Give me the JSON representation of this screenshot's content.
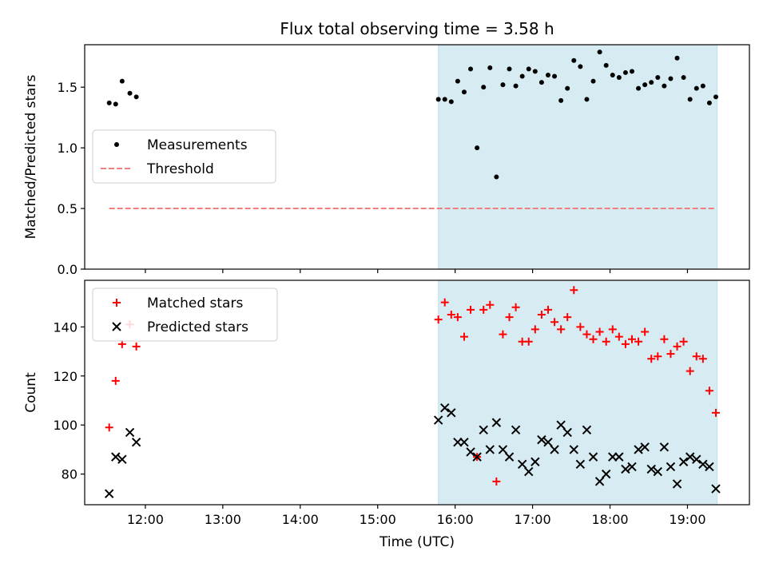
{
  "title": "Flux total observing time = 3.58 h",
  "chart_data": [
    {
      "type": "scatter",
      "ylabel": "Matched/Predicted stars",
      "xlim": [
        "11:13",
        "19:48"
      ],
      "ylim": [
        0,
        1.85
      ],
      "yticks": [
        0.0,
        0.5,
        1.0,
        1.5
      ],
      "ytick_labels": [
        "0.0",
        "0.5",
        "1.0",
        "1.5"
      ],
      "grid": false,
      "legend": "center-left",
      "shaded_span": {
        "x": [
          "15:47",
          "19:23"
        ],
        "color": "#add8e6"
      },
      "series": [
        {
          "name": "Measurements",
          "marker": "dot",
          "color": "#000000",
          "points": [
            [
              "11:32",
              1.37
            ],
            [
              "11:37",
              1.36
            ],
            [
              "11:42",
              1.55
            ],
            [
              "11:48",
              1.45
            ],
            [
              "11:53",
              1.42
            ],
            [
              "15:47",
              1.4
            ],
            [
              "15:52",
              1.4
            ],
            [
              "15:57",
              1.38
            ],
            [
              "16:02",
              1.55
            ],
            [
              "16:07",
              1.46
            ],
            [
              "16:12",
              1.65
            ],
            [
              "16:17",
              1.0
            ],
            [
              "16:22",
              1.5
            ],
            [
              "16:27",
              1.66
            ],
            [
              "16:32",
              0.76
            ],
            [
              "16:37",
              1.52
            ],
            [
              "16:42",
              1.65
            ],
            [
              "16:47",
              1.51
            ],
            [
              "16:52",
              1.59
            ],
            [
              "16:57",
              1.65
            ],
            [
              "17:02",
              1.63
            ],
            [
              "17:07",
              1.54
            ],
            [
              "17:12",
              1.6
            ],
            [
              "17:17",
              1.59
            ],
            [
              "17:22",
              1.39
            ],
            [
              "17:27",
              1.49
            ],
            [
              "17:32",
              1.72
            ],
            [
              "17:37",
              1.67
            ],
            [
              "17:42",
              1.4
            ],
            [
              "17:47",
              1.55
            ],
            [
              "17:52",
              1.79
            ],
            [
              "17:57",
              1.68
            ],
            [
              "18:02",
              1.6
            ],
            [
              "18:07",
              1.58
            ],
            [
              "18:12",
              1.62
            ],
            [
              "18:17",
              1.63
            ],
            [
              "18:22",
              1.49
            ],
            [
              "18:27",
              1.52
            ],
            [
              "18:32",
              1.54
            ],
            [
              "18:37",
              1.58
            ],
            [
              "18:42",
              1.51
            ],
            [
              "18:47",
              1.57
            ],
            [
              "18:52",
              1.74
            ],
            [
              "18:57",
              1.58
            ],
            [
              "19:02",
              1.4
            ],
            [
              "19:07",
              1.49
            ],
            [
              "19:12",
              1.51
            ],
            [
              "19:17",
              1.37
            ],
            [
              "19:22",
              1.42
            ]
          ]
        },
        {
          "name": "Threshold",
          "type": "line",
          "style": "dashed",
          "color": "#f08080",
          "x": [
            "11:32",
            "19:22"
          ],
          "y": [
            0.5,
            0.5
          ]
        }
      ]
    },
    {
      "type": "scatter",
      "xlabel": "Time (UTC)",
      "ylabel": "Count",
      "xlim": [
        "11:13",
        "19:48"
      ],
      "ylim": [
        67.5,
        159
      ],
      "xticks": [
        "12:00",
        "13:00",
        "14:00",
        "15:00",
        "16:00",
        "17:00",
        "18:00",
        "19:00"
      ],
      "yticks": [
        80,
        100,
        120,
        140
      ],
      "grid": false,
      "legend": "top-left",
      "shaded_span": {
        "x": [
          "15:47",
          "19:23"
        ],
        "color": "#add8e6"
      },
      "series": [
        {
          "name": "Matched stars",
          "marker": "plus",
          "color": "#ff0000",
          "points": [
            [
              "11:32",
              99
            ],
            [
              "11:37",
              118
            ],
            [
              "11:42",
              133
            ],
            [
              "11:48",
              141
            ],
            [
              "11:53",
              132
            ],
            [
              "15:47",
              143
            ],
            [
              "15:52",
              150
            ],
            [
              "15:57",
              145
            ],
            [
              "16:02",
              144
            ],
            [
              "16:07",
              136
            ],
            [
              "16:12",
              147
            ],
            [
              "16:17",
              87
            ],
            [
              "16:22",
              147
            ],
            [
              "16:27",
              149
            ],
            [
              "16:32",
              77
            ],
            [
              "16:37",
              137
            ],
            [
              "16:42",
              144
            ],
            [
              "16:47",
              148
            ],
            [
              "16:52",
              134
            ],
            [
              "16:57",
              134
            ],
            [
              "17:02",
              139
            ],
            [
              "17:07",
              145
            ],
            [
              "17:12",
              147
            ],
            [
              "17:17",
              142
            ],
            [
              "17:22",
              139
            ],
            [
              "17:27",
              144
            ],
            [
              "17:32",
              155
            ],
            [
              "17:37",
              140
            ],
            [
              "17:42",
              137
            ],
            [
              "17:47",
              135
            ],
            [
              "17:52",
              138
            ],
            [
              "17:57",
              134
            ],
            [
              "18:02",
              139
            ],
            [
              "18:07",
              136
            ],
            [
              "18:12",
              133
            ],
            [
              "18:17",
              135
            ],
            [
              "18:22",
              134
            ],
            [
              "18:27",
              138
            ],
            [
              "18:32",
              127
            ],
            [
              "18:37",
              128
            ],
            [
              "18:42",
              135
            ],
            [
              "18:47",
              129
            ],
            [
              "18:52",
              132
            ],
            [
              "18:57",
              134
            ],
            [
              "19:02",
              122
            ],
            [
              "19:07",
              128
            ],
            [
              "19:12",
              127
            ],
            [
              "19:17",
              114
            ],
            [
              "19:22",
              105
            ]
          ]
        },
        {
          "name": "Predicted stars",
          "marker": "x",
          "color": "#000000",
          "points": [
            [
              "11:32",
              72
            ],
            [
              "11:37",
              87
            ],
            [
              "11:42",
              86
            ],
            [
              "11:48",
              97
            ],
            [
              "11:53",
              93
            ],
            [
              "15:47",
              102
            ],
            [
              "15:52",
              107
            ],
            [
              "15:57",
              105
            ],
            [
              "16:02",
              93
            ],
            [
              "16:07",
              93
            ],
            [
              "16:12",
              89
            ],
            [
              "16:17",
              87
            ],
            [
              "16:22",
              98
            ],
            [
              "16:27",
              90
            ],
            [
              "16:32",
              101
            ],
            [
              "16:37",
              90
            ],
            [
              "16:42",
              87
            ],
            [
              "16:47",
              98
            ],
            [
              "16:52",
              84
            ],
            [
              "16:57",
              81
            ],
            [
              "17:02",
              85
            ],
            [
              "17:07",
              94
            ],
            [
              "17:12",
              93
            ],
            [
              "17:17",
              90
            ],
            [
              "17:22",
              100
            ],
            [
              "17:27",
              97
            ],
            [
              "17:32",
              90
            ],
            [
              "17:37",
              84
            ],
            [
              "17:42",
              98
            ],
            [
              "17:47",
              87
            ],
            [
              "17:52",
              77
            ],
            [
              "17:57",
              80
            ],
            [
              "18:02",
              87
            ],
            [
              "18:07",
              87
            ],
            [
              "18:12",
              82
            ],
            [
              "18:17",
              83
            ],
            [
              "18:22",
              90
            ],
            [
              "18:27",
              91
            ],
            [
              "18:32",
              82
            ],
            [
              "18:37",
              81
            ],
            [
              "18:42",
              91
            ],
            [
              "18:47",
              83
            ],
            [
              "18:52",
              76
            ],
            [
              "18:57",
              85
            ],
            [
              "19:02",
              87
            ],
            [
              "19:07",
              86
            ],
            [
              "19:12",
              84
            ],
            [
              "19:17",
              83
            ],
            [
              "19:22",
              74
            ]
          ]
        }
      ]
    }
  ]
}
